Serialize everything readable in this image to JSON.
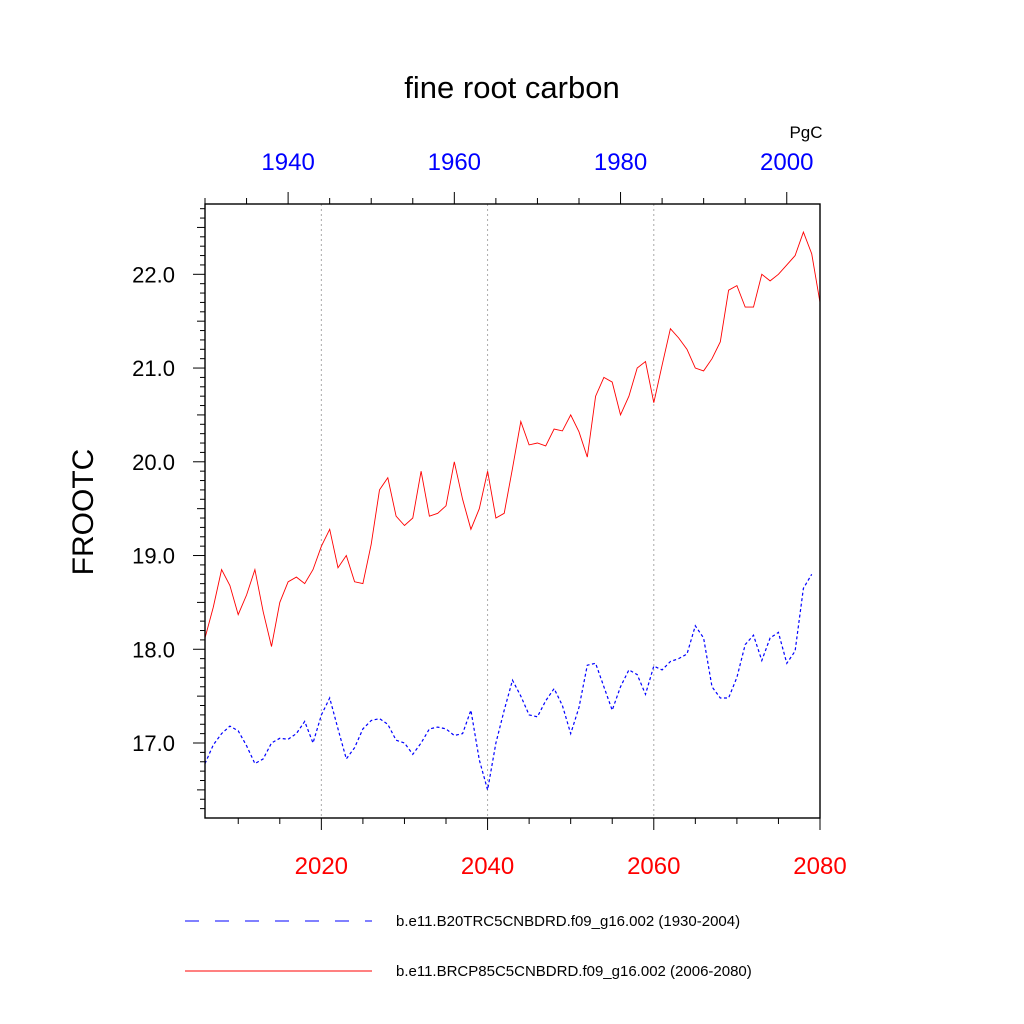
{
  "chart_data": {
    "type": "line",
    "title": "fine root carbon",
    "ylabel": "FROOTC",
    "units": "PgC",
    "ylim": [
      16.2,
      22.75
    ],
    "yticks": [
      {
        "value": 17.0,
        "label": "17.0"
      },
      {
        "value": 18.0,
        "label": "18.0"
      },
      {
        "value": 19.0,
        "label": "19.0"
      },
      {
        "value": 20.0,
        "label": "20.0"
      },
      {
        "value": 21.0,
        "label": "21.0"
      },
      {
        "value": 22.0,
        "label": "22.0"
      }
    ],
    "bottom_axis": {
      "xlim": [
        2006,
        2080
      ],
      "color": "#ff0000",
      "ticks": [
        {
          "value": 2020,
          "label": "2020"
        },
        {
          "value": 2040,
          "label": "2040"
        },
        {
          "value": 2060,
          "label": "2060"
        },
        {
          "value": 2080,
          "label": "2080"
        }
      ]
    },
    "top_axis": {
      "xlim": [
        1930,
        2004
      ],
      "color": "#0000ff",
      "ticks": [
        {
          "value": 1940,
          "label": "1940"
        },
        {
          "value": 1960,
          "label": "1960"
        },
        {
          "value": 1980,
          "label": "1980"
        },
        {
          "value": 2000,
          "label": "2000"
        }
      ]
    },
    "grid": "dotted vertical lines at 2020, 2040, 2060",
    "legend_position": "bottom",
    "series": [
      {
        "name": "b.e11.B20TRC5CNBDRD.f09_g16.002 (1930-2004)",
        "axis": "top",
        "color": "#0000ff",
        "style": "dashed",
        "x_start": 1930,
        "values": [
          16.78,
          16.98,
          17.1,
          17.18,
          17.13,
          16.97,
          16.78,
          16.83,
          17.0,
          17.05,
          17.04,
          17.1,
          17.23,
          17.0,
          17.3,
          17.48,
          17.15,
          16.83,
          16.95,
          17.15,
          17.24,
          17.26,
          17.2,
          17.03,
          17.0,
          16.88,
          17.0,
          17.15,
          17.17,
          17.15,
          17.08,
          17.1,
          17.35,
          16.82,
          16.5,
          17.0,
          17.35,
          17.67,
          17.5,
          17.3,
          17.28,
          17.45,
          17.58,
          17.4,
          17.1,
          17.38,
          17.83,
          17.85,
          17.6,
          17.35,
          17.6,
          17.78,
          17.73,
          17.52,
          17.82,
          17.78,
          17.87,
          17.9,
          17.95,
          18.25,
          18.12,
          17.6,
          17.48,
          17.48,
          17.7,
          18.05,
          18.15,
          17.88,
          18.12,
          18.18,
          17.85,
          17.98,
          18.65,
          18.8
        ]
      },
      {
        "name": "b.e11.BRCP85C5CNBDRD.f09_g16.002 (2006-2080)",
        "axis": "bottom",
        "color": "#ff0000",
        "style": "solid",
        "x_start": 2006,
        "values": [
          18.12,
          18.45,
          18.85,
          18.68,
          18.37,
          18.58,
          18.85,
          18.4,
          18.03,
          18.5,
          18.72,
          18.77,
          18.7,
          18.85,
          19.1,
          19.28,
          18.87,
          19.0,
          18.72,
          18.7,
          19.12,
          19.7,
          19.83,
          19.42,
          19.32,
          19.4,
          19.9,
          19.42,
          19.45,
          19.53,
          20.0,
          19.6,
          19.28,
          19.5,
          19.9,
          19.4,
          19.45,
          19.93,
          20.43,
          20.18,
          20.2,
          20.17,
          20.35,
          20.33,
          20.5,
          20.32,
          20.05,
          20.7,
          20.9,
          20.85,
          20.5,
          20.7,
          21.0,
          21.07,
          20.63,
          21.03,
          21.42,
          21.32,
          21.2,
          21.0,
          20.97,
          21.1,
          21.28,
          21.83,
          21.88,
          21.65,
          21.65,
          22.0,
          21.93,
          22.0,
          22.1,
          22.2,
          22.45,
          22.22,
          21.7
        ]
      }
    ]
  }
}
